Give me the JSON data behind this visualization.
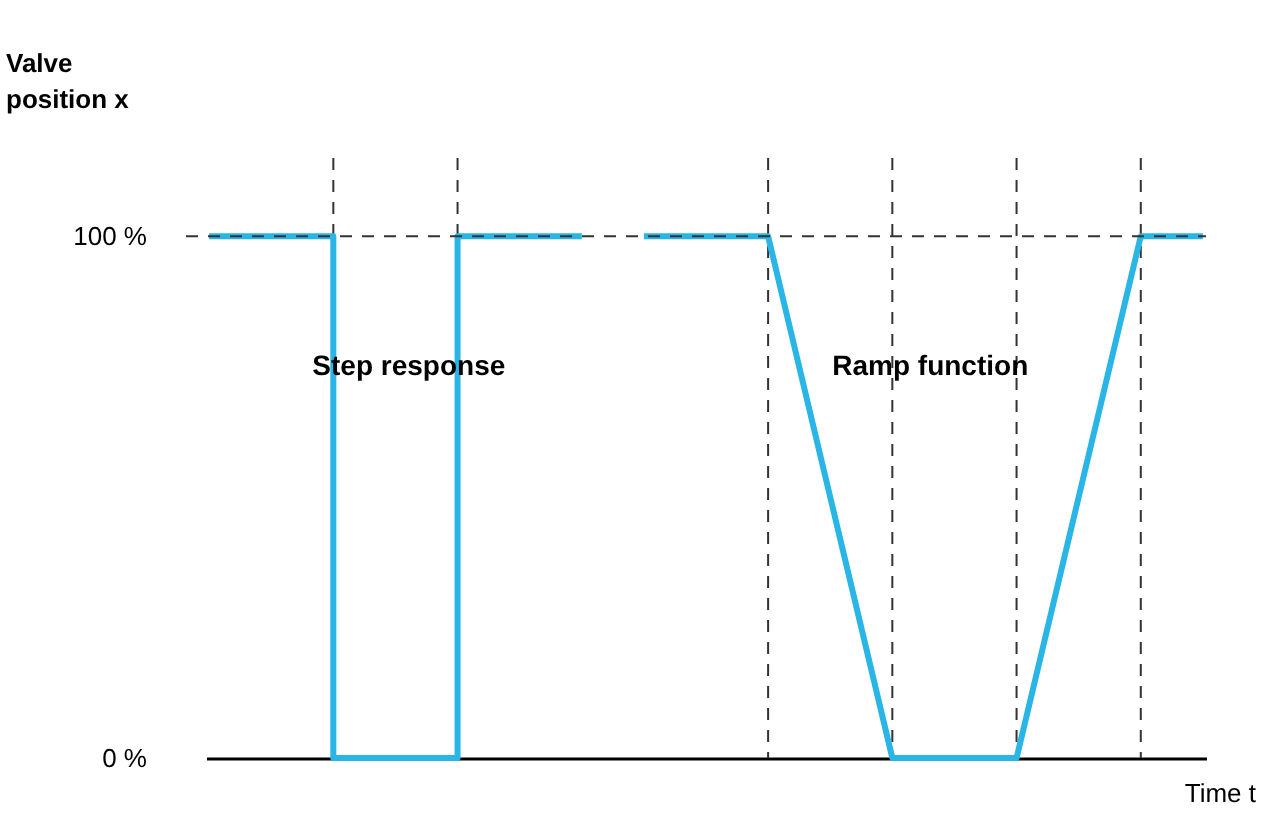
{
  "chart_data": {
    "type": "line",
    "ylabel": "Valve position x",
    "xlabel": "Time t",
    "categories": [
      null,
      null,
      null,
      null,
      null,
      null,
      null,
      null,
      null,
      null,
      null,
      null,
      null,
      null,
      null,
      null,
      null
    ],
    "series": [
      {
        "type": "step",
        "color": "#29b5e6",
        "values": [
          100,
          100,
          0,
          0,
          100,
          100,
          100,
          null,
          null,
          null,
          null,
          null,
          null,
          null,
          null,
          null,
          null
        ]
      },
      {
        "color": "#29b5e6",
        "values": [
          null,
          null,
          null,
          null,
          null,
          null,
          null,
          100,
          100,
          100,
          50,
          0,
          0,
          0,
          50,
          100,
          100
        ]
      }
    ],
    "ylim": [
      0,
      115
    ],
    "yticks": [
      {
        "value": 0,
        "label": "0 %"
      },
      {
        "value": 100,
        "label": "100 %"
      }
    ],
    "ref_lines": [
      {
        "axis": "y",
        "value": 100,
        "line_style": "dashed",
        "color": "#333333"
      }
    ],
    "annotations": [
      "Step response",
      "Ramp function"
    ],
    "grid": "x"
  }
}
